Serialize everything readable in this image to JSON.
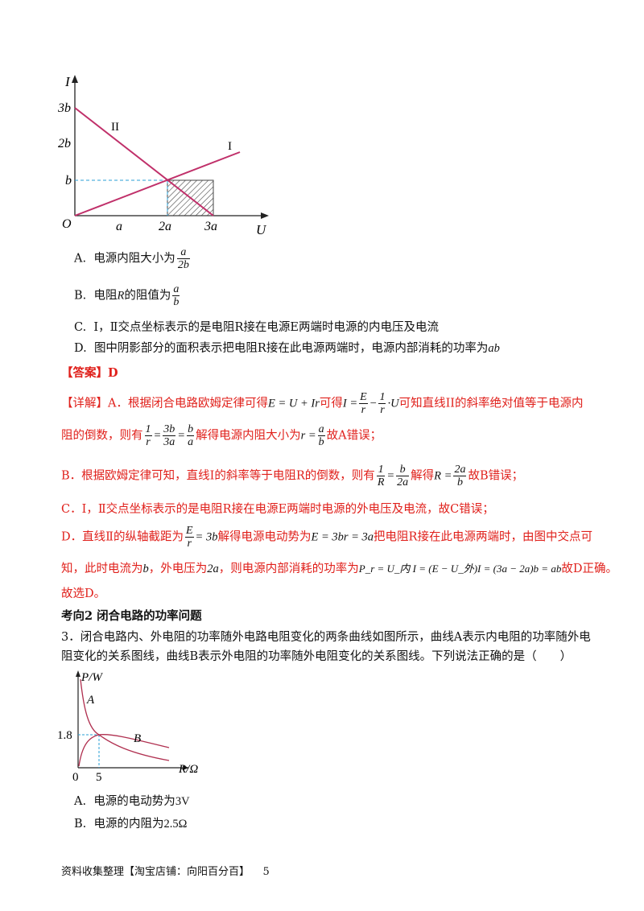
{
  "graph1": {
    "y_axis": "I",
    "x_axis": "U",
    "origin": "O",
    "y_ticks": [
      "3b",
      "2b",
      "b"
    ],
    "x_ticks": [
      "a",
      "2a",
      "3a"
    ],
    "line_labels": [
      "II",
      "I"
    ]
  },
  "q2": {
    "options": [
      {
        "letter": "A.",
        "text": "电源内阻大小为",
        "frac_num": "a",
        "frac_den": "2b"
      },
      {
        "letter": "B.",
        "text_pre": "电阻",
        "var": "R",
        "text": "的阻值为",
        "frac_num": "a",
        "frac_den": "b"
      },
      {
        "letter": "C.",
        "text": "Ⅰ，Ⅱ交点坐标表示的是电阻R接在电源E两端时电源的内电压及电流"
      },
      {
        "letter": "D.",
        "text": "图中阴影部分的面积表示把电阻R接在此电源两端时，电源内部消耗的功率为",
        "math": "ab"
      }
    ],
    "answer_label": "【答案】D",
    "detail": {
      "l1_a": "【详解】A．根据闭合电路欧姆定律可得",
      "l1_eq1": "E = U + Ir",
      "l1_b": "可得",
      "l1_c": "可知直线II的斜率绝对值等于电源内",
      "l2_a": "阻的倒数，则有",
      "l2_b": "解得电源内阻大小为",
      "l2_c": "故A错误；",
      "l3_a": "B．根据欧姆定律可知，直线I的斜率等于电阻R的倒数，则有",
      "l3_b": "解得",
      "l3_c": "故B错误；",
      "l4": "C．Ⅰ，Ⅱ交点坐标表示的是电阻R接在电源E两端时电源的外电压及电流，故C错误；",
      "l5_a": "D．直线Ⅱ的纵轴截距为",
      "l5_b": "解得电源电动势为",
      "l5_eq": "E = 3br = 3a",
      "l5_c": "把电阻R接在此电源两端时，由图中交点可",
      "l6_a": "知，此时电流为",
      "l6_b": "b",
      "l6_c": "，外电压为",
      "l6_d": "2a",
      "l6_e": "，则电源内部消耗的功率为",
      "l6_eq": "P_r = U_内 I = (E − U_外)I = (3a − 2a)b = ab",
      "l6_f": "故D正确。",
      "l7": "故选D。"
    }
  },
  "section": {
    "title": "考向2  闭合电路的功率问题"
  },
  "q3": {
    "stem_line1": "3．闭合电路内、外电阻的功率随外电路电阻变化的两条曲线如图所示，曲线A表示内电阻的功率随外电",
    "stem_line2": "阻变化的关系图线，曲线B表示外电阻的功率随外电阻变化的关系图线。下列说法正确的是（　　）",
    "graph": {
      "y_axis": "P/W",
      "x_axis": "R/Ω",
      "y_tick": "1.8",
      "x_ticks": [
        "0",
        "5"
      ],
      "curves": [
        "A",
        "B"
      ]
    },
    "options": [
      {
        "letter": "A.",
        "text": "电源的电动势为",
        "math": "3V"
      },
      {
        "letter": "B.",
        "text": "电源的内阻为",
        "math": "2.5Ω"
      }
    ]
  },
  "footer": {
    "text": "资料收集整理【淘宝店铺：向阳百分百】",
    "page": "5"
  },
  "colors": {
    "red": "#e0201b",
    "line": "#c0306a",
    "dash": "#2a9fd6"
  }
}
